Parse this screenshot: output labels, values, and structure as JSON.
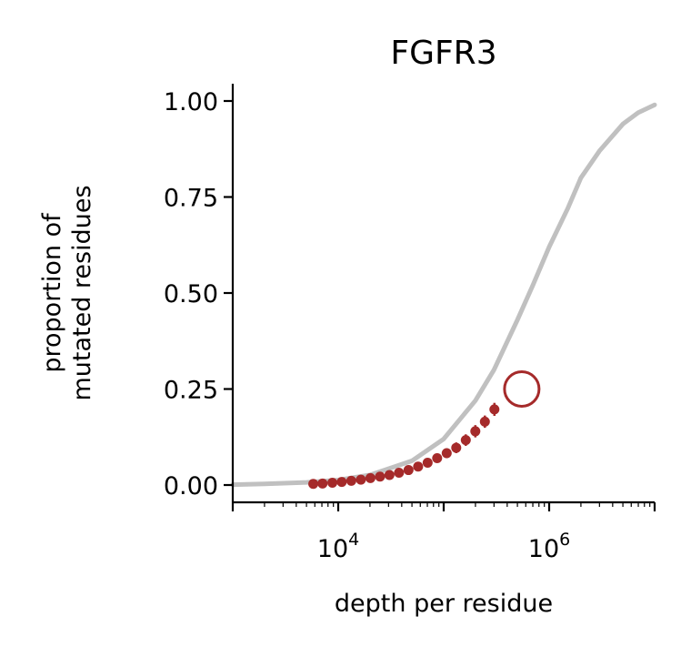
{
  "chart_data": {
    "type": "scatter",
    "title": "FGFR3",
    "xlabel": "depth per residue",
    "ylabel_lines": [
      "proportion of",
      "mutated residues"
    ],
    "xscale": "log",
    "xlim": [
      1000,
      10000000
    ],
    "ylim": [
      -0.045,
      1.045
    ],
    "x_ticks": [
      {
        "value": 10000,
        "base": "10",
        "exp": "4"
      },
      {
        "value": 1000000,
        "base": "10",
        "exp": "6"
      }
    ],
    "y_ticks": [
      {
        "value": 0.0,
        "label": "0.00"
      },
      {
        "value": 0.25,
        "label": "0.25"
      },
      {
        "value": 0.5,
        "label": "0.50"
      },
      {
        "value": 0.75,
        "label": "0.75"
      },
      {
        "value": 1.0,
        "label": "1.00"
      }
    ],
    "grid": false,
    "series": [
      {
        "kind": "curve",
        "color": "#c0c0c0",
        "x": [
          1000,
          2000,
          5000,
          10000,
          20000,
          50000,
          100000,
          200000,
          300000,
          500000,
          700000,
          1000000,
          1500000,
          2000000,
          3000000,
          5000000,
          7000000,
          10000000
        ],
        "y": [
          0.001,
          0.003,
          0.007,
          0.013,
          0.026,
          0.063,
          0.12,
          0.22,
          0.3,
          0.43,
          0.52,
          0.62,
          0.72,
          0.8,
          0.87,
          0.94,
          0.97,
          0.99
        ]
      },
      {
        "kind": "points",
        "color": "#a52a2a",
        "x": [
          5800,
          7100,
          8800,
          10800,
          13300,
          16400,
          20200,
          24900,
          30600,
          37700,
          46400,
          57200,
          70400,
          86700,
          106800,
          131500,
          162000,
          199500,
          245700,
          302600
        ],
        "y": [
          0.003,
          0.004,
          0.006,
          0.008,
          0.011,
          0.014,
          0.018,
          0.022,
          0.026,
          0.032,
          0.039,
          0.048,
          0.058,
          0.07,
          0.083,
          0.097,
          0.117,
          0.14,
          0.165,
          0.197
        ],
        "err": [
          0.003,
          0.003,
          0.003,
          0.003,
          0.004,
          0.004,
          0.005,
          0.005,
          0.006,
          0.007,
          0.008,
          0.009,
          0.011,
          0.012,
          0.013,
          0.014,
          0.015,
          0.016,
          0.016,
          0.017
        ]
      },
      {
        "kind": "open-marker",
        "color": "#a52a2a",
        "x": [
          550000
        ],
        "y": [
          0.25
        ]
      }
    ]
  }
}
